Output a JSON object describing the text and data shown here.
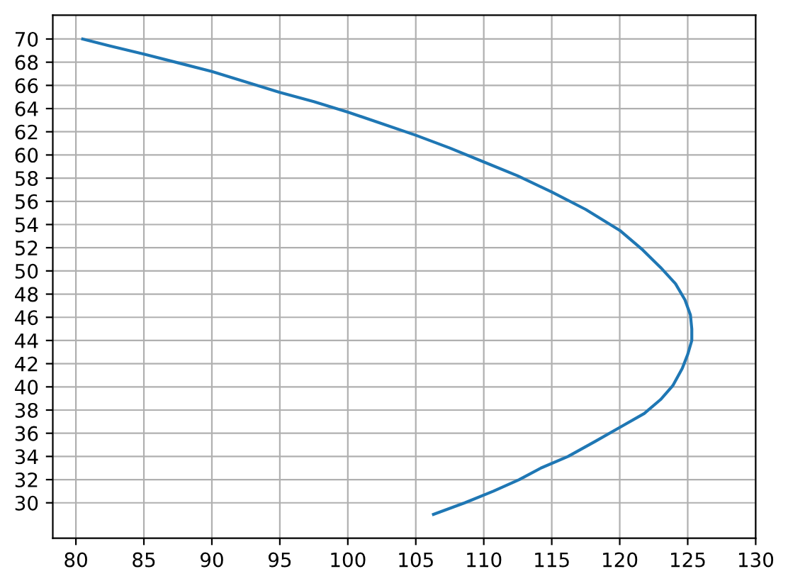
{
  "chart_data": {
    "type": "line",
    "series": [
      {
        "color": "#1f77b4",
        "x": [
          80.5,
          82.5,
          85,
          90,
          95,
          97.5,
          100,
          102.5,
          105,
          107.5,
          110,
          112.5,
          115,
          117.5,
          120,
          121.7,
          123.0,
          124.1,
          124.8,
          125.2,
          125.3,
          125.3,
          125.0,
          124.6,
          123.9,
          123.0,
          121.8,
          120.0,
          118.2,
          116.2,
          114.2,
          112.6,
          110.7,
          108.6,
          106.3
        ],
        "values": [
          70.0,
          69.4,
          68.7,
          67.2,
          65.4,
          64.6,
          63.7,
          62.7,
          61.7,
          60.6,
          59.4,
          58.2,
          56.8,
          55.3,
          53.5,
          51.8,
          50.3,
          48.9,
          47.5,
          46.2,
          45.0,
          44.0,
          42.8,
          41.6,
          40.1,
          38.9,
          37.7,
          36.5,
          35.3,
          34.0,
          33.0,
          32.0,
          31.0,
          30.0,
          29.0
        ]
      }
    ],
    "xlim": [
      78.3,
      130
    ],
    "ylim": [
      26.95,
      72.05
    ],
    "xticks": [
      80,
      85,
      90,
      95,
      100,
      105,
      110,
      115,
      120,
      125,
      130
    ],
    "yticks": [
      30,
      32,
      34,
      36,
      38,
      40,
      42,
      44,
      46,
      48,
      50,
      52,
      54,
      56,
      58,
      60,
      62,
      64,
      66,
      68,
      70
    ],
    "grid": true
  }
}
